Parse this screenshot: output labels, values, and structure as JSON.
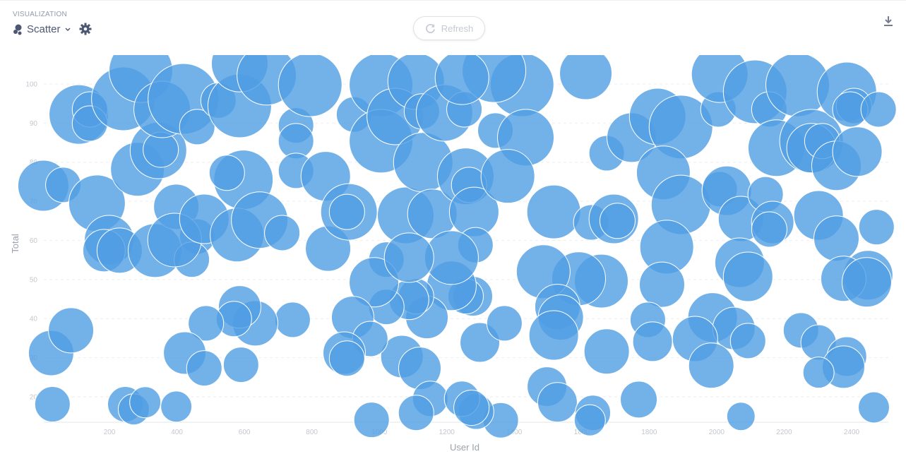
{
  "header": {
    "section_label": "VISUALIZATION",
    "visualization_type": "Scatter",
    "type_icon": "bubble-icon",
    "settings_icon": "gear-icon",
    "refresh_label": "Refresh",
    "refresh_icon": "refresh-icon",
    "download_icon": "download-icon"
  },
  "colors": {
    "bubble": "#509EE3",
    "bubble_stroke": "#ffffff",
    "grid": "#eceef1"
  },
  "chart_data": {
    "type": "scatter",
    "xlabel": "User Id",
    "ylabel": "Total",
    "xlim": [
      0,
      2510
    ],
    "ylim": [
      13.5,
      107.4
    ],
    "xticks": [
      200,
      400,
      600,
      800,
      1000,
      1200,
      1400,
      1600,
      1800,
      2000,
      2200,
      2400
    ],
    "yticks": [
      20,
      30,
      40,
      50,
      60,
      70,
      80,
      90,
      100
    ],
    "grid": "horizontal-dashed",
    "point_fields": [
      "user_id",
      "total",
      "size"
    ],
    "points": [
      [
        4,
        74.0,
        36
      ],
      [
        63,
        74.2,
        25
      ],
      [
        109,
        92.2,
        42
      ],
      [
        142,
        93.5,
        25
      ],
      [
        142,
        89.9,
        25
      ],
      [
        163,
        69.5,
        40
      ],
      [
        27,
        31.2,
        32
      ],
      [
        86,
        37.0,
        32
      ],
      [
        31,
        18.1,
        25
      ],
      [
        247,
        18.1,
        25
      ],
      [
        272,
        16.8,
        22
      ],
      [
        306,
        18.6,
        22
      ],
      [
        398,
        17.5,
        22
      ],
      [
        241,
        96.2,
        45
      ],
      [
        293,
        103.4,
        45
      ],
      [
        283,
        78.2,
        38
      ],
      [
        345,
        83.0,
        40
      ],
      [
        352,
        83.2,
        25
      ],
      [
        199,
        60.1,
        35
      ],
      [
        184,
        57.4,
        30
      ],
      [
        230,
        57.4,
        32
      ],
      [
        335,
        57.4,
        38
      ],
      [
        398,
        68.6,
        32
      ],
      [
        460,
        61.0,
        25
      ],
      [
        444,
        55.1,
        25
      ],
      [
        393,
        60.1,
        38
      ],
      [
        481,
        65.5,
        35
      ],
      [
        356,
        93.5,
        40
      ],
      [
        419,
        96.2,
        50
      ],
      [
        460,
        89.0,
        25
      ],
      [
        523,
        95.8,
        25
      ],
      [
        586,
        94.4,
        45
      ],
      [
        586,
        105.2,
        40
      ],
      [
        666,
        102.2,
        42
      ],
      [
        597,
        75.5,
        42
      ],
      [
        548,
        77.3,
        25
      ],
      [
        578,
        61.4,
        38
      ],
      [
        645,
        65.2,
        40
      ],
      [
        712,
        61.9,
        25
      ],
      [
        753,
        89.4,
        25
      ],
      [
        753,
        85.4,
        25
      ],
      [
        753,
        77.8,
        25
      ],
      [
        795,
        99.8,
        45
      ],
      [
        841,
        76.4,
        35
      ],
      [
        848,
        57.9,
        32
      ],
      [
        910,
        67.3,
        40
      ],
      [
        904,
        67.3,
        25
      ],
      [
        925,
        92.2,
        25
      ],
      [
        1005,
        99.8,
        45
      ],
      [
        1005,
        85.4,
        45
      ],
      [
        1047,
        91.7,
        40
      ],
      [
        1078,
        66.4,
        40
      ],
      [
        1109,
        100.7,
        40
      ],
      [
        1126,
        93.0,
        25
      ],
      [
        1130,
        80.0,
        42
      ],
      [
        1157,
        66.8,
        35
      ],
      [
        1193,
        92.6,
        40
      ],
      [
        1252,
        93.5,
        25
      ],
      [
        1256,
        76.4,
        40
      ],
      [
        1266,
        74.2,
        25
      ],
      [
        1281,
        67.3,
        35
      ],
      [
        1285,
        58.8,
        25
      ],
      [
        1344,
        88.1,
        25
      ],
      [
        1423,
        99.8,
        45
      ],
      [
        1434,
        86.3,
        40
      ],
      [
        1381,
        76.4,
        38
      ],
      [
        1612,
        102.7,
        37
      ],
      [
        1517,
        67.3,
        38
      ],
      [
        1628,
        64.6,
        25
      ],
      [
        1695,
        65.5,
        35
      ],
      [
        1706,
        65.0,
        25
      ],
      [
        1674,
        82.3,
        25
      ],
      [
        1748,
        86.3,
        35
      ],
      [
        1825,
        91.7,
        40
      ],
      [
        1894,
        89.0,
        45
      ],
      [
        1842,
        77.3,
        38
      ],
      [
        1894,
        69.1,
        42
      ],
      [
        1852,
        58.3,
        38
      ],
      [
        2005,
        93.5,
        25
      ],
      [
        2009,
        102.5,
        40
      ],
      [
        2114,
        98.0,
        45
      ],
      [
        2009,
        73.1,
        25
      ],
      [
        2030,
        72.7,
        35
      ],
      [
        2072,
        65.5,
        32
      ],
      [
        2145,
        71.8,
        25
      ],
      [
        2166,
        64.6,
        30
      ],
      [
        2156,
        62.8,
        25
      ],
      [
        2156,
        93.5,
        25
      ],
      [
        2177,
        83.6,
        40
      ],
      [
        2240,
        99.8,
        45
      ],
      [
        2281,
        85.4,
        45
      ],
      [
        2281,
        83.6,
        35
      ],
      [
        2313,
        85.4,
        25
      ],
      [
        2355,
        79.1,
        35
      ],
      [
        2302,
        66.4,
        35
      ],
      [
        2355,
        60.5,
        32
      ],
      [
        2386,
        98.0,
        42
      ],
      [
        2407,
        94.4,
        25
      ],
      [
        2396,
        93.5,
        25
      ],
      [
        2417,
        82.7,
        35
      ],
      [
        2480,
        93.5,
        25
      ],
      [
        2474,
        63.4,
        25
      ],
      [
        2449,
        51.1,
        35
      ],
      [
        2376,
        50.2,
        32
      ],
      [
        2445,
        49.3,
        35
      ],
      [
        2068,
        54.3,
        35
      ],
      [
        2093,
        50.7,
        35
      ],
      [
        1988,
        40.3,
        35
      ],
      [
        2051,
        37.5,
        30
      ],
      [
        2093,
        34.3,
        25
      ],
      [
        1936,
        34.8,
        32
      ],
      [
        1984,
        28.0,
        32
      ],
      [
        1838,
        48.7,
        32
      ],
      [
        1796,
        39.7,
        25
      ],
      [
        1810,
        34.1,
        28
      ],
      [
        1674,
        31.6,
        32
      ],
      [
        1658,
        49.6,
        38
      ],
      [
        1591,
        50.2,
        38
      ],
      [
        1486,
        52.0,
        38
      ],
      [
        1528,
        43.0,
        32
      ],
      [
        1538,
        40.3,
        32
      ],
      [
        1517,
        35.7,
        35
      ],
      [
        1497,
        22.6,
        28
      ],
      [
        1528,
        18.6,
        28
      ],
      [
        1633,
        15.9,
        25
      ],
      [
        1624,
        14.0,
        22
      ],
      [
        1769,
        19.3,
        26
      ],
      [
        2072,
        15.0,
        20
      ],
      [
        2250,
        37.0,
        25
      ],
      [
        2302,
        33.9,
        25
      ],
      [
        2386,
        30.3,
        28
      ],
      [
        2376,
        27.6,
        30
      ],
      [
        2302,
        26.2,
        22
      ],
      [
        2466,
        17.3,
        22
      ],
      [
        1360,
        14.0,
        25
      ],
      [
        1287,
        16.2,
        25
      ],
      [
        1298,
        33.9,
        28
      ],
      [
        1371,
        38.8,
        25
      ],
      [
        1277,
        45.7,
        28
      ],
      [
        1256,
        45.7,
        25
      ],
      [
        1214,
        48.4,
        35
      ],
      [
        1141,
        40.3,
        30
      ],
      [
        1109,
        45.7,
        25
      ],
      [
        1088,
        44.8,
        28
      ],
      [
        1021,
        43.0,
        25
      ],
      [
        1021,
        55.1,
        25
      ],
      [
        984,
        49.3,
        35
      ],
      [
        1067,
        30.3,
        30
      ],
      [
        1120,
        27.3,
        30
      ],
      [
        1151,
        19.5,
        25
      ],
      [
        1109,
        15.9,
        25
      ],
      [
        977,
        14.1,
        25
      ],
      [
        921,
        40.3,
        30
      ],
      [
        973,
        34.8,
        25
      ],
      [
        896,
        31.2,
        30
      ],
      [
        904,
        29.8,
        25
      ],
      [
        1245,
        19.5,
        25
      ],
      [
        1273,
        17.2,
        25
      ],
      [
        1214,
        55.6,
        38
      ],
      [
        743,
        39.7,
        25
      ],
      [
        632,
        38.8,
        32
      ],
      [
        586,
        43.0,
        30
      ],
      [
        569,
        39.9,
        25
      ],
      [
        486,
        38.8,
        25
      ],
      [
        423,
        31.2,
        30
      ],
      [
        481,
        27.3,
        25
      ],
      [
        590,
        28.2,
        25
      ],
      [
        1088,
        55.6,
        35
      ],
      [
        1340,
        103.4,
        45
      ],
      [
        1245,
        101.6,
        38
      ]
    ]
  }
}
